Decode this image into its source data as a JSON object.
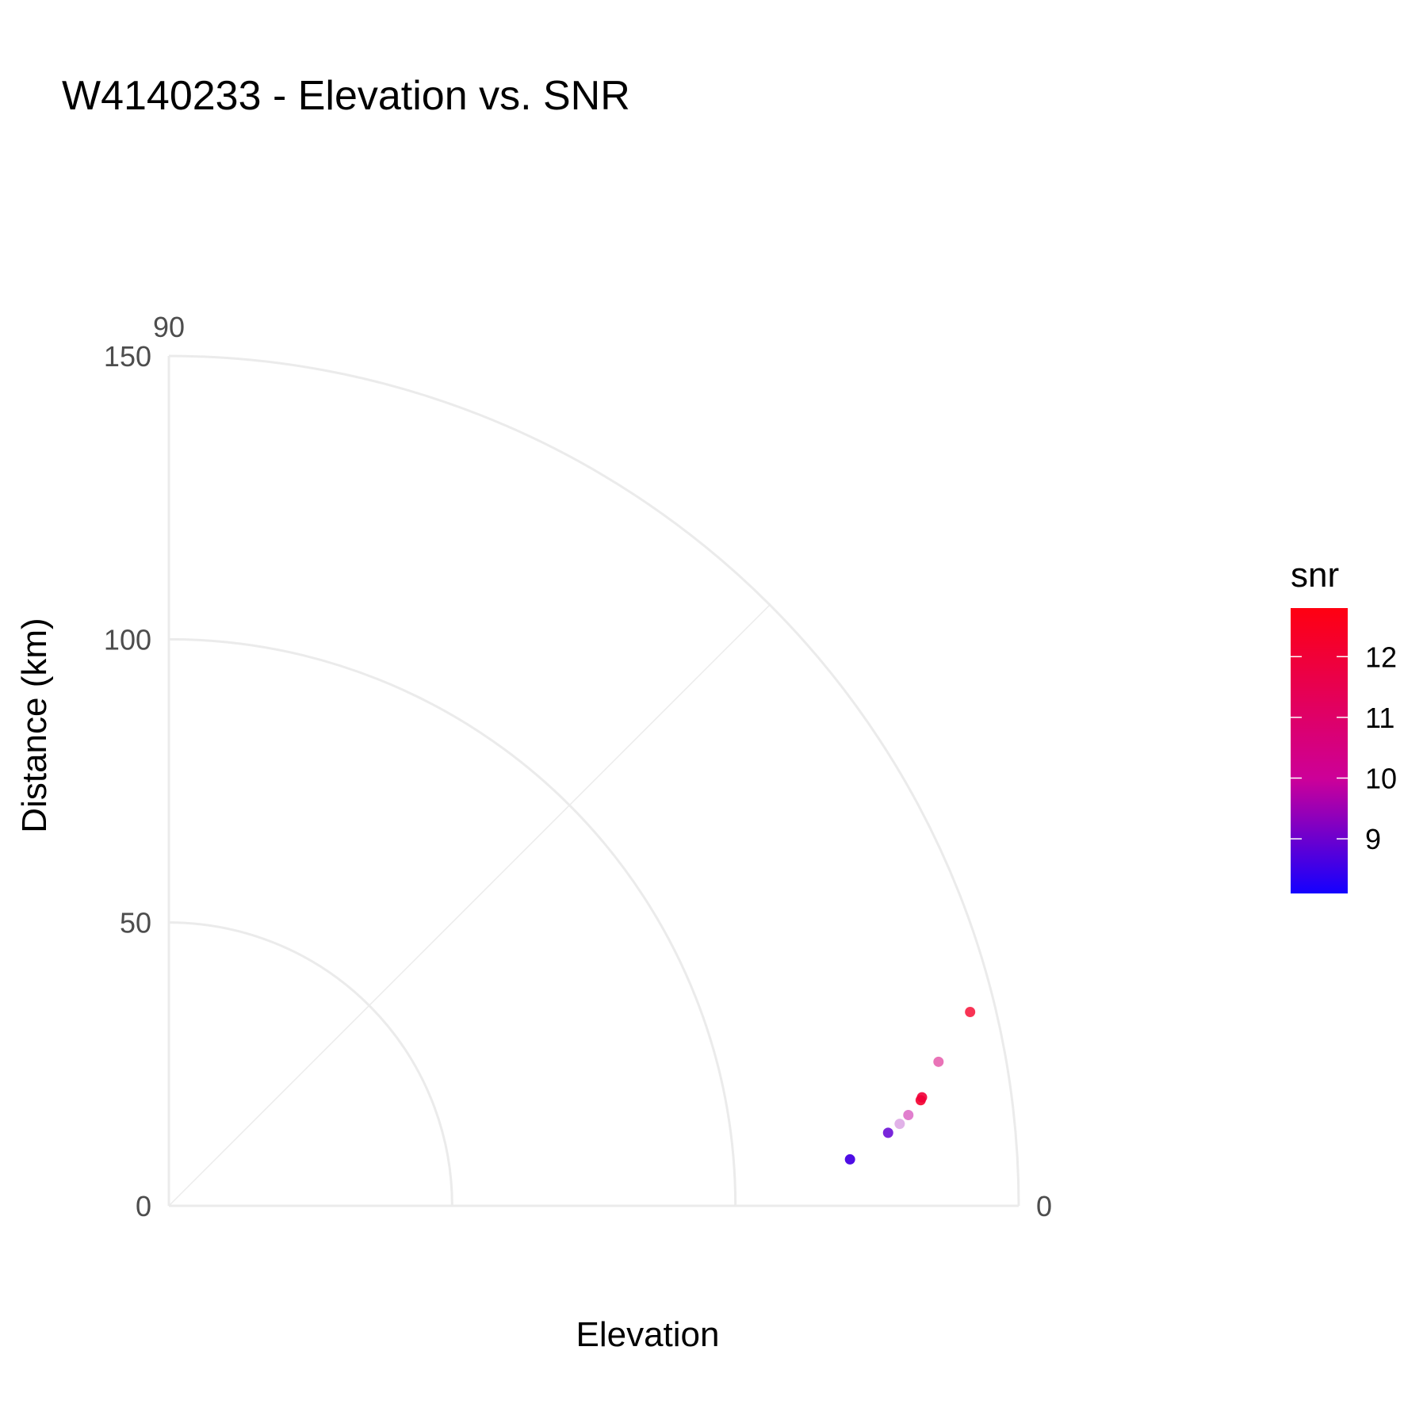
{
  "chart_data": {
    "type": "scatter",
    "coord": "polar-quadrant",
    "title": "W4140233 - Elevation vs. SNR",
    "xlabel": "Elevation",
    "ylabel": "Distance (km)",
    "theta_ticks": [
      {
        "value": 0,
        "label": "0"
      },
      {
        "value": 90,
        "label": "90"
      }
    ],
    "theta_range": [
      0,
      90
    ],
    "theta_minor_gridlines": [
      45
    ],
    "r_range": [
      0,
      150
    ],
    "r_ticks": [
      {
        "value": 0,
        "label": "0"
      },
      {
        "value": 50,
        "label": "50"
      },
      {
        "value": 100,
        "label": "100"
      },
      {
        "value": 150,
        "label": "150"
      }
    ],
    "grid": true,
    "legend": {
      "title": "snr",
      "placement": "right",
      "type": "colorbar",
      "range": [
        8.1,
        12.8
      ],
      "low_color": "#1400ff",
      "mid_color": "#cc0099",
      "high_color": "#ff0011",
      "ticks": [
        {
          "value": 9,
          "label": "9"
        },
        {
          "value": 10,
          "label": "10"
        },
        {
          "value": 11,
          "label": "11"
        },
        {
          "value": 12,
          "label": "12"
        }
      ]
    },
    "points": [
      {
        "elevation": 3.9,
        "distance": 120.5,
        "snr": 8.6,
        "alpha": 0.95
      },
      {
        "elevation": 5.8,
        "distance": 127.6,
        "snr": 8.9,
        "alpha": 0.85
      },
      {
        "elevation": 6.4,
        "distance": 129.8,
        "snr": 9.5,
        "alpha": 0.3
      },
      {
        "elevation": 7.0,
        "distance": 131.5,
        "snr": 9.9,
        "alpha": 0.5
      },
      {
        "elevation": 8.0,
        "distance": 134.0,
        "snr": 12.2,
        "alpha": 0.9
      },
      {
        "elevation": 8.2,
        "distance": 134.3,
        "snr": 12.0,
        "alpha": 0.9
      },
      {
        "elevation": 10.6,
        "distance": 138.2,
        "snr": 10.6,
        "alpha": 0.55
      },
      {
        "elevation": 13.6,
        "distance": 145.5,
        "snr": 12.3,
        "alpha": 0.8
      }
    ]
  }
}
